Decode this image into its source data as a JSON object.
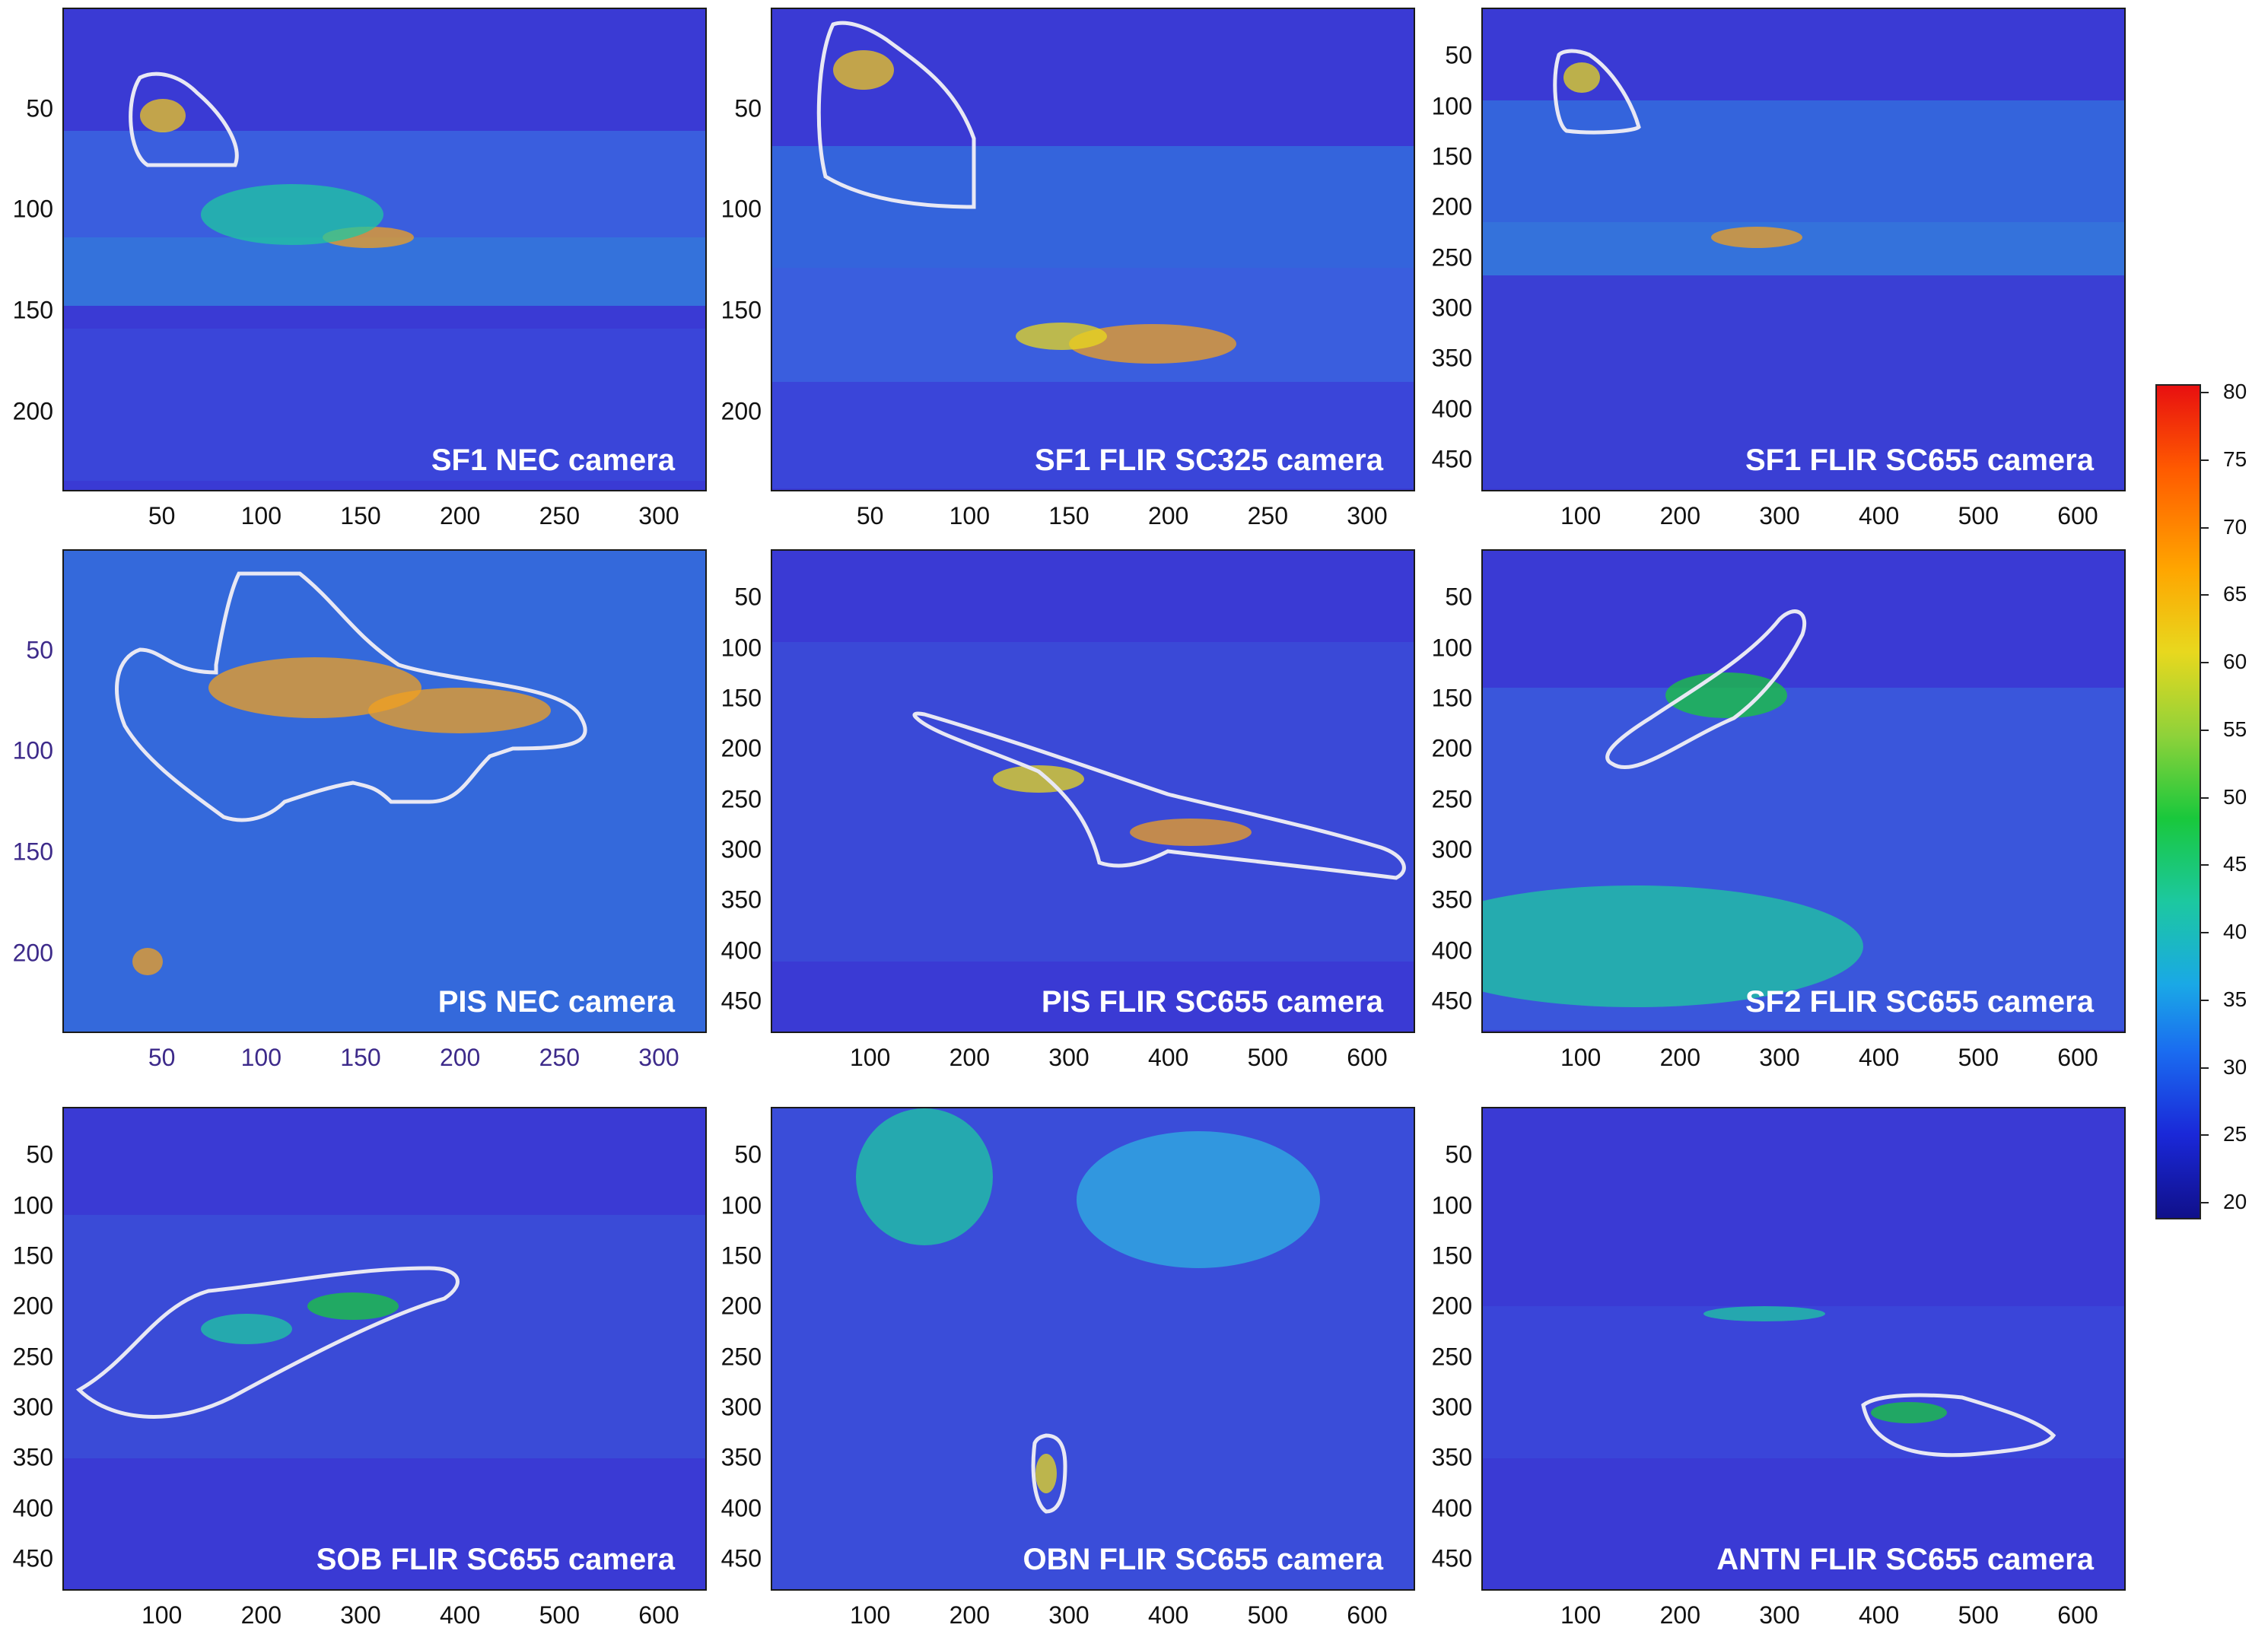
{
  "panels": [
    {
      "id": "sf1-nec",
      "label": "SF1 NEC camera",
      "yticks": [
        "50",
        "100",
        "150",
        "200"
      ],
      "xticks": [
        "50",
        "100",
        "150",
        "200",
        "250",
        "300"
      ],
      "tick_color": "default"
    },
    {
      "id": "sf1-flir-sc325",
      "label": "SF1 FLIR SC325 camera",
      "yticks": [
        "50",
        "100",
        "150",
        "200"
      ],
      "xticks": [
        "50",
        "100",
        "150",
        "200",
        "250",
        "300"
      ],
      "tick_color": "default"
    },
    {
      "id": "sf1-flir-sc655",
      "label": "SF1 FLIR SC655 camera",
      "yticks": [
        "50",
        "100",
        "150",
        "200",
        "250",
        "300",
        "350",
        "400",
        "450"
      ],
      "xticks": [
        "100",
        "200",
        "300",
        "400",
        "500",
        "600"
      ],
      "tick_color": "default"
    },
    {
      "id": "pis-nec",
      "label": "PIS NEC camera",
      "yticks": [
        "50",
        "100",
        "150",
        "200"
      ],
      "xticks": [
        "50",
        "100",
        "150",
        "200",
        "250",
        "300"
      ],
      "tick_color": "purple"
    },
    {
      "id": "pis-flir-sc655",
      "label": "PIS FLIR SC655 camera",
      "yticks": [
        "50",
        "100",
        "150",
        "200",
        "250",
        "300",
        "350",
        "400",
        "450"
      ],
      "xticks": [
        "100",
        "200",
        "300",
        "400",
        "500",
        "600"
      ],
      "tick_color": "default"
    },
    {
      "id": "sf2-flir-sc655",
      "label": "SF2 FLIR SC655 camera",
      "yticks": [
        "50",
        "100",
        "150",
        "200",
        "250",
        "300",
        "350",
        "400",
        "450"
      ],
      "xticks": [
        "100",
        "200",
        "300",
        "400",
        "500",
        "600"
      ],
      "tick_color": "default"
    },
    {
      "id": "sob-flir-sc655",
      "label": "SOB FLIR SC655 camera",
      "yticks": [
        "50",
        "100",
        "150",
        "200",
        "250",
        "300",
        "350",
        "400",
        "450"
      ],
      "xticks": [
        "100",
        "200",
        "300",
        "400",
        "500",
        "600"
      ],
      "tick_color": "default"
    },
    {
      "id": "obn-flir-sc655",
      "label": "OBN FLIR SC655 camera",
      "yticks": [
        "50",
        "100",
        "150",
        "200",
        "250",
        "300",
        "350",
        "400",
        "450"
      ],
      "xticks": [
        "100",
        "200",
        "300",
        "400",
        "500",
        "600"
      ],
      "tick_color": "default"
    },
    {
      "id": "antn-flir-sc655",
      "label": "ANTN FLIR SC655 camera",
      "yticks": [
        "50",
        "100",
        "150",
        "200",
        "250",
        "300",
        "350",
        "400",
        "450"
      ],
      "xticks": [
        "100",
        "200",
        "300",
        "400",
        "500",
        "600"
      ],
      "tick_color": "default"
    }
  ],
  "colorbar": {
    "ticks": [
      "80",
      "75",
      "70",
      "65",
      "60",
      "55",
      "50",
      "45",
      "40",
      "35",
      "30",
      "25",
      "20"
    ],
    "colormap": "jet",
    "min": 20,
    "max": 80
  },
  "colors": {
    "background_blue": "#3a3ad4",
    "roi_outline": "#e8e8f4",
    "label_text": "#ffffff",
    "purple_tick": "#3d2a8a"
  }
}
